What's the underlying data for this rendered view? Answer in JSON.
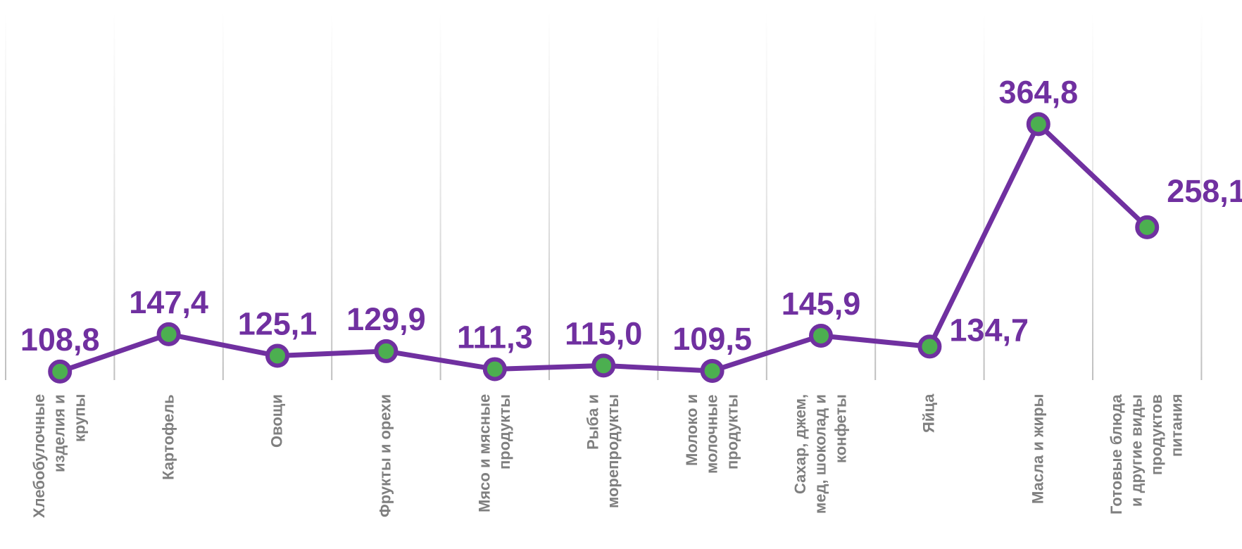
{
  "chart_data": {
    "type": "line",
    "categories": [
      "Хлебобулочные\nизделия и\nкрупы",
      "Картофель",
      "Овощи",
      "Фрукты и орехи",
      "Мясо и мясные\nпродукты",
      "Рыба и\nморепродукты",
      "Молоко и\nмолочные\nпродукты",
      "Сахар, джем,\nмед, шоколад и\nконфеты",
      "Яйца",
      "Масла и жиры",
      "Готовые блюда\nи другие виды\nпродуктов\nпитания"
    ],
    "values": [
      108.8,
      147.4,
      125.1,
      129.9,
      111.3,
      115.0,
      109.5,
      145.9,
      134.7,
      364.8,
      258.1
    ],
    "value_labels": [
      "108,8",
      "147,4",
      "125,1",
      "129,9",
      "111,3",
      "115,0",
      "109,5",
      "145,9",
      "134,7",
      "364,8",
      "258,1"
    ],
    "color": "#7030a0",
    "marker_color": "#4caf50",
    "ylim": [
      100,
      400
    ],
    "grid": true
  }
}
